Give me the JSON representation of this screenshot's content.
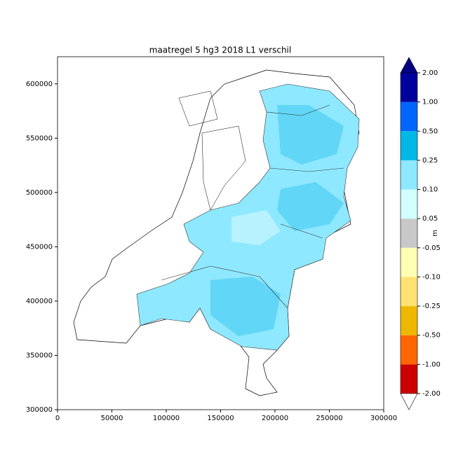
{
  "chart_data": {
    "type": "map",
    "title": "maatregel 5 hg3 2018 L1 verschil",
    "xlim": [
      0,
      300000
    ],
    "xticks": [
      0,
      50000,
      100000,
      150000,
      200000,
      250000,
      300000
    ],
    "ylim": [
      300000,
      625000
    ],
    "yticks": [
      300000,
      350000,
      400000,
      450000,
      500000,
      550000,
      600000
    ],
    "colorbar": {
      "label": "m",
      "ticks": [
        {
          "value": -2,
          "label": "-2.00"
        },
        {
          "value": -1,
          "label": "-1.00"
        },
        {
          "value": -0.5,
          "label": "-0.50"
        },
        {
          "value": -0.25,
          "label": "-0.25"
        },
        {
          "value": -0.1,
          "label": "-0.10"
        },
        {
          "value": -0.05,
          "label": "-0.05"
        },
        {
          "value": 0.05,
          "label": "0.05"
        },
        {
          "value": 0.1,
          "label": "0.10"
        },
        {
          "value": 0.25,
          "label": "0.25"
        },
        {
          "value": 0.5,
          "label": "0.50"
        },
        {
          "value": 1,
          "label": "1.00"
        },
        {
          "value": 2,
          "label": "2.00"
        }
      ],
      "colors": [
        "#cc0000",
        "#ff6600",
        "#efb800",
        "#ffe272",
        "#ffffb4",
        "#c8c8c8",
        "#d2ffff",
        "#8ee8ff",
        "#00b8e6",
        "#0066ff",
        "#00009c"
      ],
      "under_color": "#ffffff",
      "over_color": "#000080"
    }
  }
}
